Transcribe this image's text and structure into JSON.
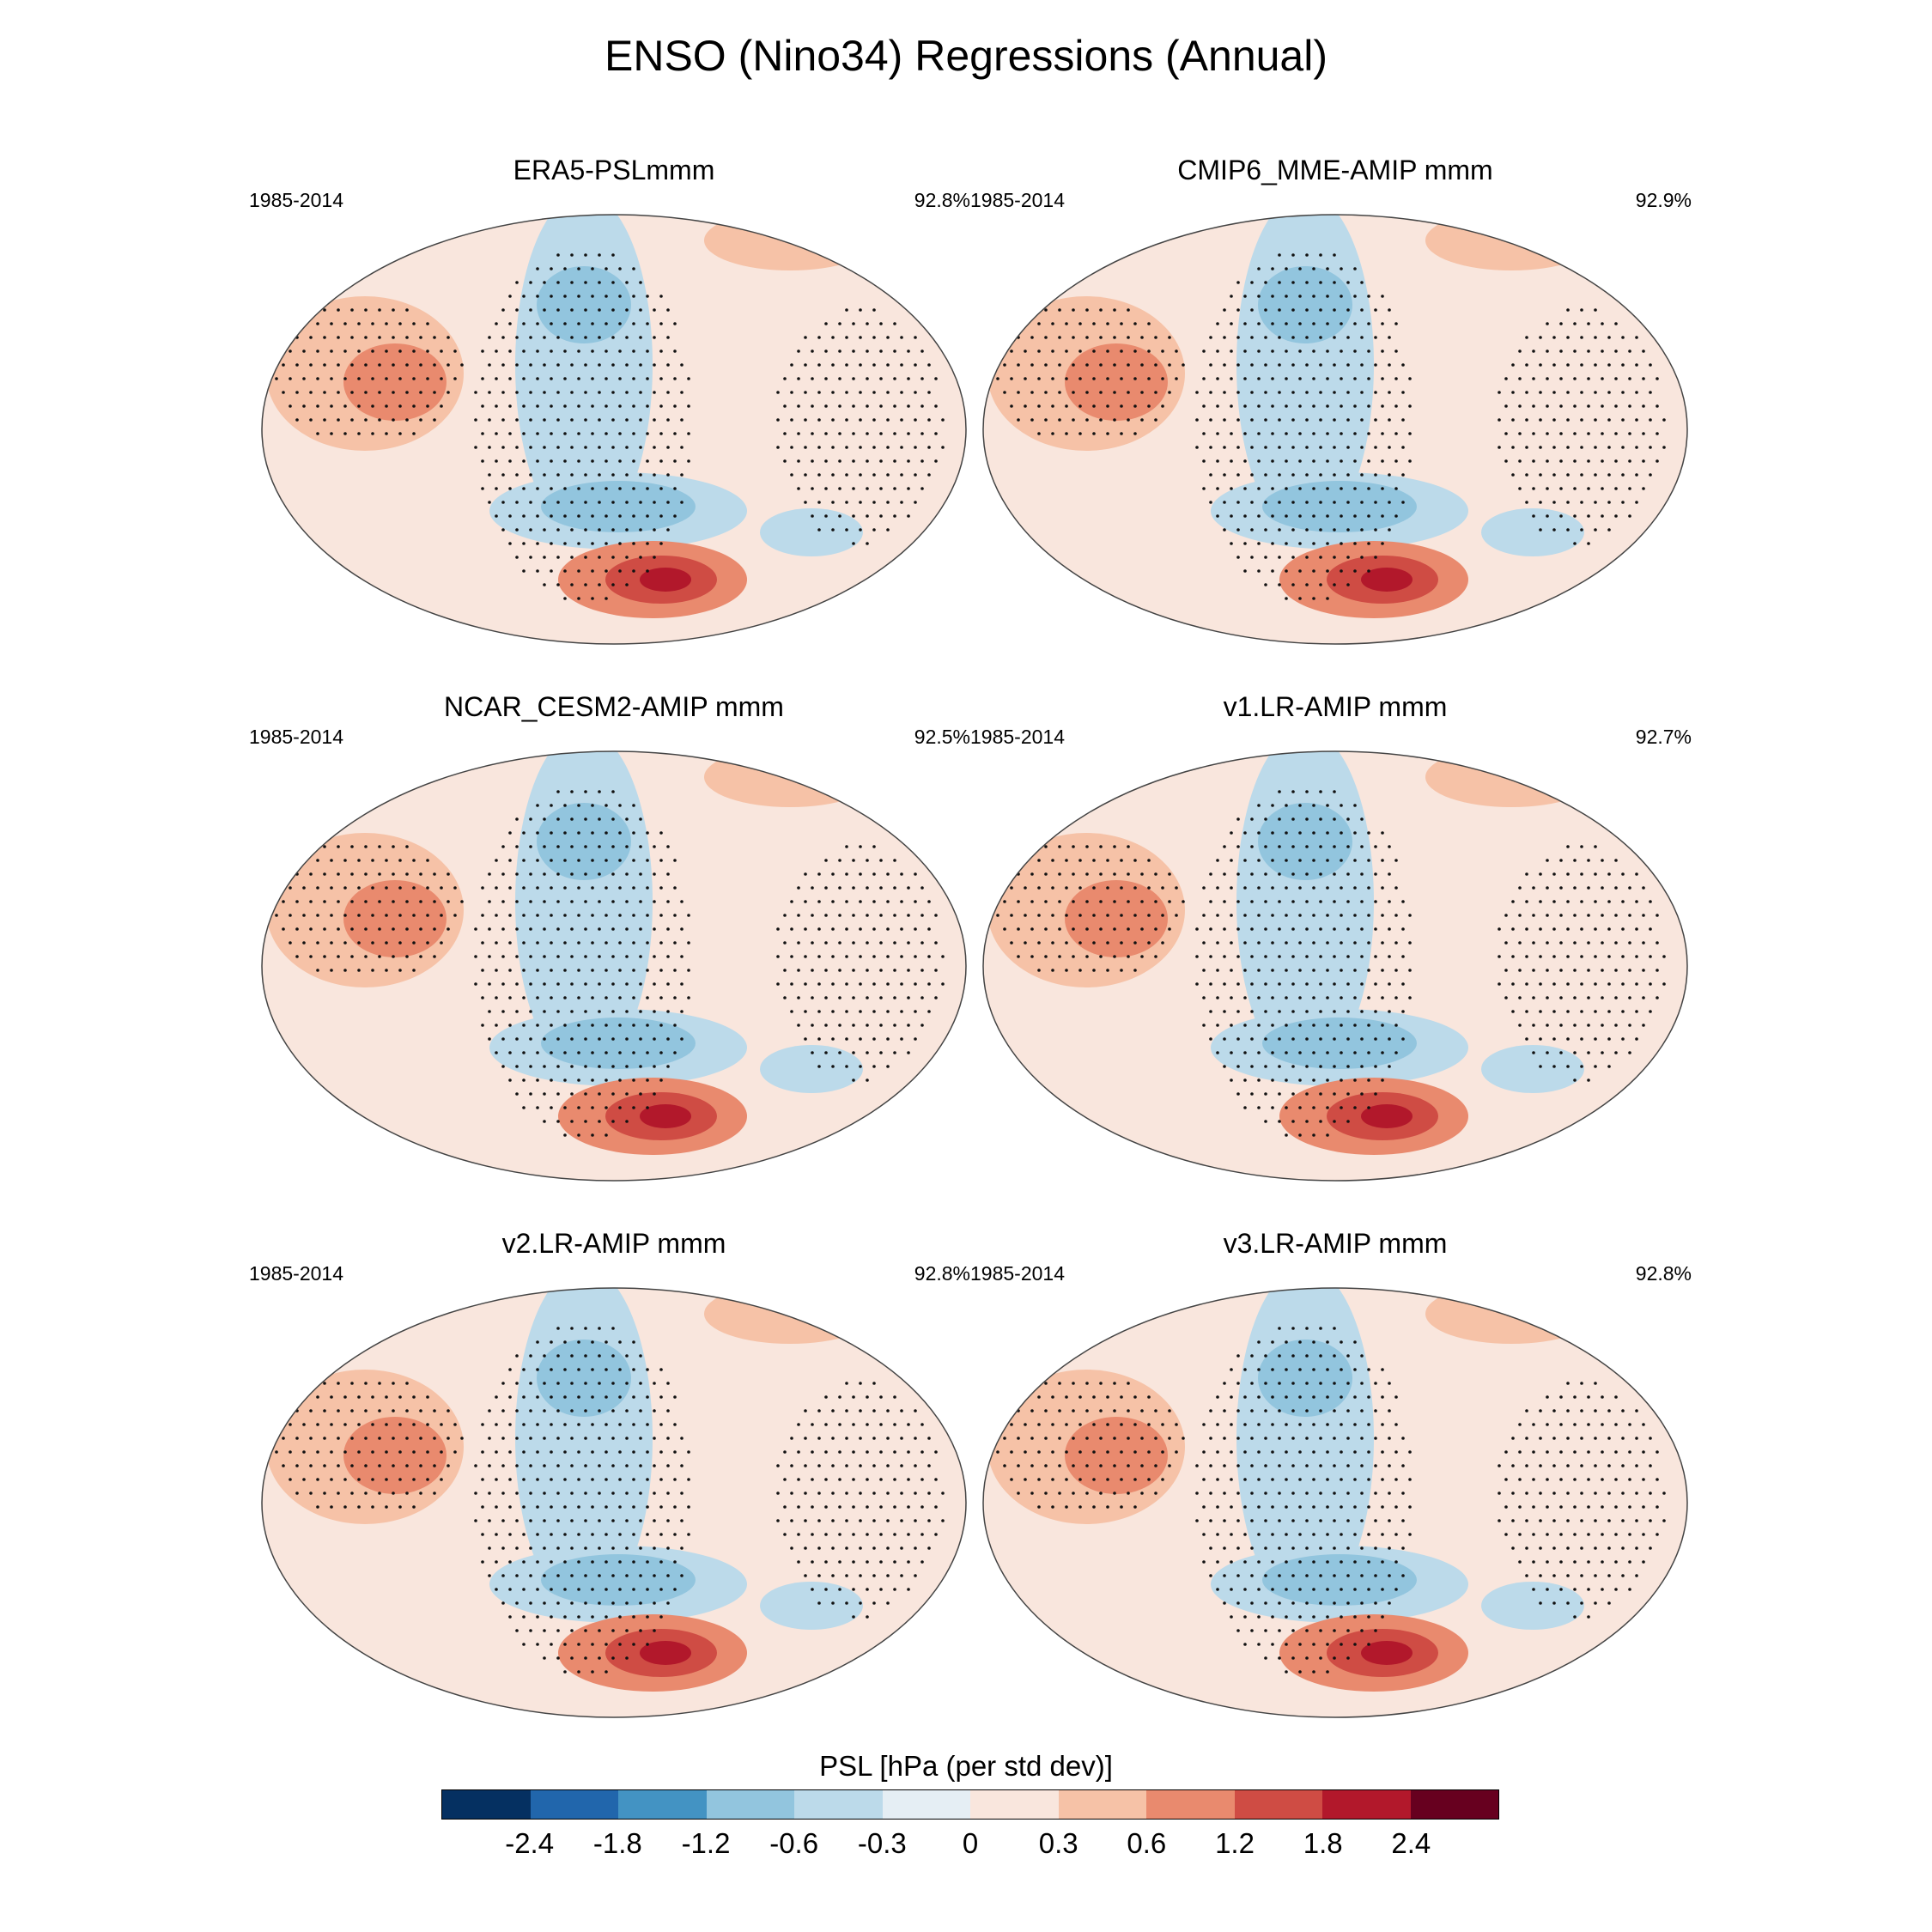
{
  "figure": {
    "title": "ENSO (Nino34) Regressions (Annual)"
  },
  "panels": [
    {
      "name": "ERA5-PSLmmm",
      "years": "1985-2014",
      "percent": "92.8%"
    },
    {
      "name": "CMIP6_MME-AMIP  mmm",
      "years": "1985-2014",
      "percent": "92.9%"
    },
    {
      "name": "NCAR_CESM2-AMIP  mmm",
      "years": "1985-2014",
      "percent": "92.5%"
    },
    {
      "name": "v1.LR-AMIP  mmm",
      "years": "1985-2014",
      "percent": "92.7%"
    },
    {
      "name": "v2.LR-AMIP  mmm",
      "years": "1985-2014",
      "percent": "92.8%"
    },
    {
      "name": "v3.LR-AMIP  mmm",
      "years": "1985-2014",
      "percent": "92.8%"
    }
  ],
  "colorbar": {
    "title": "PSL [hPa (per std dev)]",
    "labels": [
      "-2.4",
      "-1.8",
      "-1.2",
      "-0.6",
      "-0.3",
      "0",
      "0.3",
      "0.6",
      "1.2",
      "1.8",
      "2.4"
    ],
    "colors": [
      "#053061",
      "#2166ac",
      "#4393c3",
      "#92c5de",
      "#bcdaea",
      "#e5eef4",
      "#f9e6dd",
      "#f6c2a7",
      "#e98a6e",
      "#cf4c44",
      "#b2182b",
      "#67001f"
    ]
  }
}
